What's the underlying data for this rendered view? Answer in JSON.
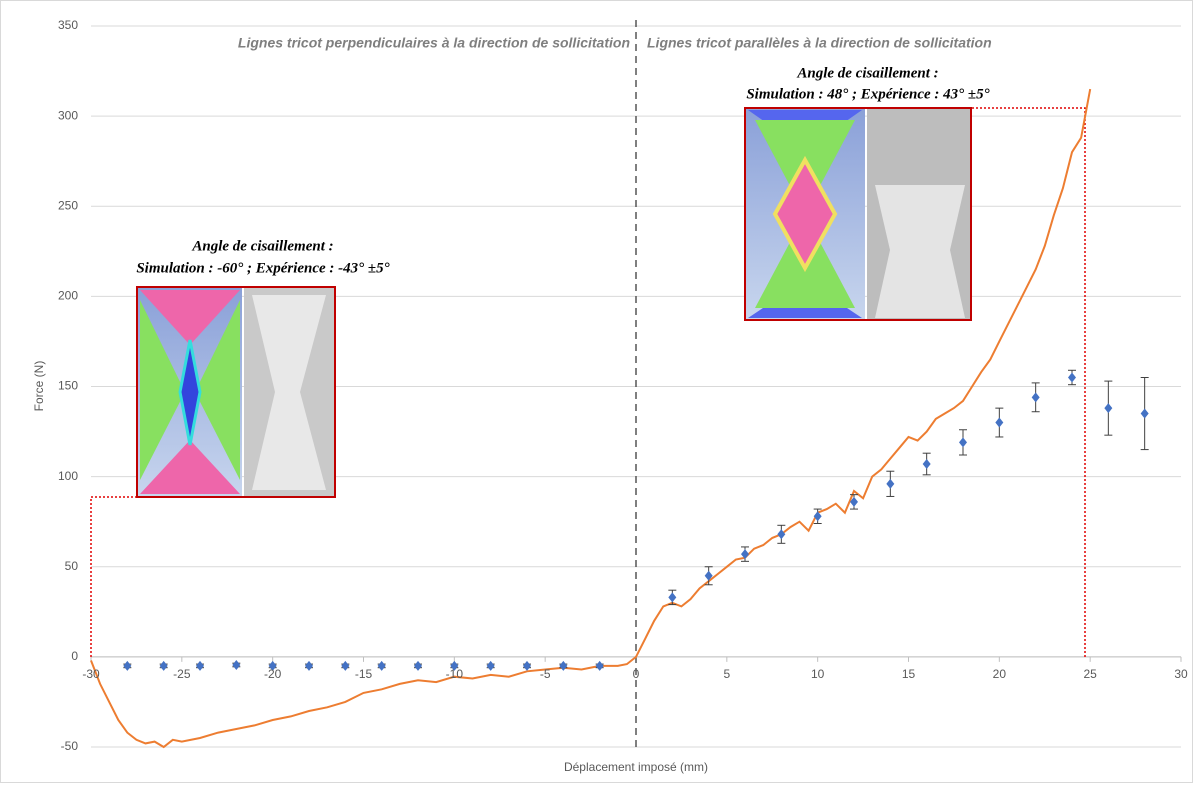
{
  "chart_data": {
    "type": "scatter",
    "xlabel": "Déplacement imposé (mm)",
    "ylabel": "Force (N)",
    "xlim": [
      -30,
      30
    ],
    "xticks": [
      -30,
      -25,
      -20,
      -15,
      -10,
      -5,
      0,
      5,
      10,
      15,
      20,
      25,
      30
    ],
    "ylim": [
      -50,
      350
    ],
    "yticks": [
      -50,
      0,
      50,
      100,
      150,
      200,
      250,
      300,
      350
    ],
    "grid": true,
    "annotations": [
      "Lignes tricot perpendiculaires à la direction de sollicitation",
      "Lignes tricot parallèles à la direction de sollicitation",
      "Angle de cisaillement :",
      "Simulation : -60° ; Expérience : -43° ±5°",
      "Angle de cisaillement :",
      "Simulation : 48° ; Expérience : 43° ±5°"
    ],
    "series": [
      {
        "type": "line",
        "color": "#ed7d31",
        "x": [
          -30,
          -29.5,
          -29,
          -28.5,
          -28,
          -27.5,
          -27,
          -26.5,
          -26,
          -25.5,
          -25,
          -24,
          -23,
          -22,
          -21,
          -20,
          -19,
          -18,
          -17,
          -16,
          -15,
          -14,
          -13,
          -12,
          -11,
          -10,
          -9,
          -8,
          -7,
          -6,
          -5,
          -4,
          -3,
          -2,
          -1,
          -0.5,
          0,
          0.5,
          1,
          1.5,
          2,
          2.5,
          3,
          3.5,
          4,
          4.5,
          5,
          5.5,
          6,
          6.5,
          7,
          7.5,
          8,
          8.5,
          9,
          9.5,
          10,
          10.5,
          11,
          11.5,
          12,
          12.5,
          13,
          13.5,
          14,
          14.5,
          15,
          15.5,
          16,
          16.5,
          17,
          17.5,
          18,
          18.5,
          19,
          19.5,
          20,
          20.5,
          21,
          21.5,
          22,
          22.5,
          23,
          23.5,
          24,
          24.5,
          25
        ],
        "values": [
          -2,
          -15,
          -25,
          -35,
          -42,
          -46,
          -48,
          -47,
          -50,
          -46,
          -47,
          -45,
          -42,
          -40,
          -38,
          -35,
          -33,
          -30,
          -28,
          -25,
          -20,
          -18,
          -15,
          -13,
          -14,
          -11,
          -12,
          -10,
          -11,
          -8,
          -7,
          -6,
          -7,
          -5,
          -5,
          -4,
          0,
          10,
          20,
          28,
          30,
          28,
          32,
          38,
          42,
          46,
          50,
          54,
          55,
          60,
          62,
          66,
          68,
          72,
          75,
          70,
          80,
          82,
          85,
          80,
          92,
          88,
          100,
          104,
          110,
          116,
          122,
          120,
          125,
          132,
          135,
          138,
          142,
          150,
          158,
          165,
          175,
          185,
          195,
          205,
          215,
          228,
          245,
          260,
          280,
          288,
          315
        ]
      },
      {
        "type": "scatter",
        "color": "#4472c4",
        "x": [
          -28,
          -26,
          -24,
          -22,
          -20,
          -18,
          -16,
          -14,
          -12,
          -10,
          -8,
          -6,
          -4,
          -2,
          2,
          4,
          6,
          8,
          10,
          12,
          14,
          16,
          18,
          20,
          22,
          24,
          26,
          28
        ],
        "values": [
          -5,
          -5,
          -5,
          -4.5,
          -5,
          -5,
          -5,
          -5,
          -5,
          -5,
          -5,
          -5,
          -5,
          -5,
          33,
          45,
          57,
          68,
          78,
          86,
          96,
          107,
          119,
          130,
          144,
          155,
          138,
          135
        ],
        "errors": [
          1,
          1,
          1,
          1,
          1,
          1,
          1,
          1,
          1,
          1,
          1,
          1,
          1,
          1,
          4,
          5,
          4,
          5,
          4,
          4,
          7,
          6,
          7,
          8,
          8,
          4,
          15,
          20
        ]
      }
    ]
  }
}
